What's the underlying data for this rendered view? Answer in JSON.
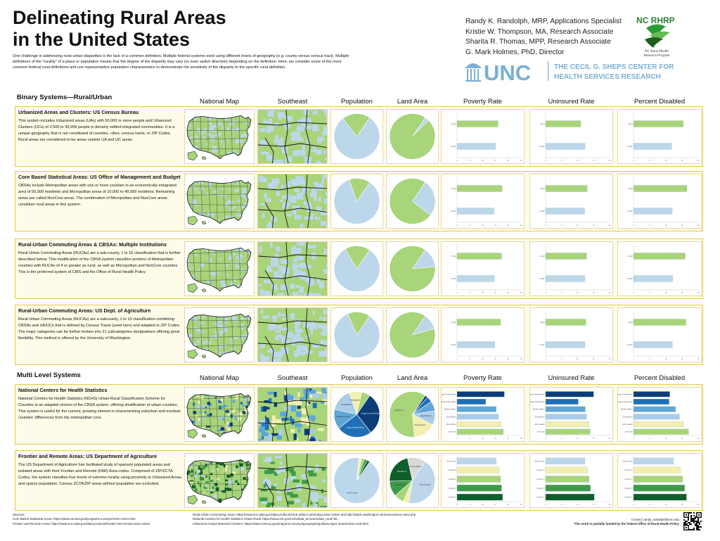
{
  "title_line1": "Delineating Rural Areas",
  "title_line2": "in the United States",
  "intro": "One challenge in addressing rural-urban disparities is the lack of a common definition.  Multiple federal systems exist using different levels of geography (e.g. county versus census tract).  Multiple definitions of the “rurality” of a place or population means that the degree of the disparity may vary (or even switch direction) depending on the definition.  Here, we consider  some of the more common federal rural definitions and use representative population characteristics to demonstrate the sensitivity of the disparity to the specific rural definition.",
  "authors": [
    "Randy K. Randolph, MRP, Applications Specialist",
    "Kristie W. Thompson, MA, Research Associate",
    "Sharita R. Thomas, MPP, Research Associate",
    "G. Mark Holmes, PhD, Director"
  ],
  "logos": {
    "nc_rhrp": "NC RHRP",
    "nc_rhrp_sub1": "NC Rural Health",
    "nc_rhrp_sub2": "Research Program",
    "unc": "UNC",
    "sheps1": "THE CECIL G. SHEPS CENTER FOR",
    "sheps2": "HEALTH SERVICES RESEARCH"
  },
  "sections": {
    "binary": "Binary Systems—Rural/Urban",
    "multi": "Multi Level Systems"
  },
  "columns": [
    "National Map",
    "Southeast",
    "Population",
    "Land Area",
    "Poverty Rate",
    "Uninsured Rate",
    "Percent Disabled"
  ],
  "rows": [
    {
      "title": "Urbanized Areas and Clusters: US Census Bureau",
      "text": "This system includes Urbanized areas (UAs) with 50,000 or more people and Urbanized Clusters (UCs) of 2,500 to 49,999 people in densely settled integrated communities. It is a unique geography that is not constituted of counties, cities, census tracts, or ZIP Codes. Rural areas are considered to be areas outside UA and UC areas."
    },
    {
      "title": "Core Based Statistical Areas: US Office of Management and Budget",
      "text": "CBSAs include Metropolitan areas with one or more counties in an economically integrated area of 50,000 residents and Micropolitan areas of 10,000 to 49,999 residents.  Remaining areas are called NonCore areas. The combination of Micropolitan and NonCore areas constitute rural areas in this system."
    },
    {
      "title": "Rural-Urban Commuting Areas & CBSAs: Multiple Institutions",
      "text": "Rural-Urban Commuting Areas (RUCAs) are a sub-county, 1 to 10 classification that is further described below. This modification of the CBSA system classifies portions of Metropolitan counties with RUCAs of 4 or greater as rural, as well as Micropolitan and NonCore counties. This is the preferred system of CMS and the Office of Rural Health Policy."
    },
    {
      "title": "Rural-Urban Commuting Areas: US Dept. of Agriculture",
      "text": "Rural-Urban Commuting Areas (RUCAs) are a subcounty, 1 to 10 classification combining CBSAs and UA/UCs that is defined by Census Tracts (used here) and adapted to ZIP Codes. The major categories can be further broken into 21 subcategories designations offering great flexibility. This method is offered by the University of Washington."
    },
    {
      "title": "National Centers for Health Statistics",
      "text": "National Centers for Health Statistics (NCHS) Urban-Rural Classification Scheme for Counties is an adapted version of the CBSA system, offering stratification of urban counties. This system is useful for the current, growing interest in characterizing suburban and exurban counties' differences from the metropolitan core."
    },
    {
      "title": "Frontier and Remote Areas: US Department of Agriculture",
      "text": "The US Department of Agriculture has facilitated study of sparsely populated areas and isolated areas with their Frontier and Remote (FAR) Area codes. Comprised of ZIP/ZCTA Codes, the system classifies four levels of extreme rurality using proximity to Urbanized Areas and sparse population. Census ZCTA/ZIP areas without population are excluded."
    }
  ],
  "chart_data": [
    {
      "type": "pie",
      "name": "Population — Urbanized Areas",
      "values": [
        80,
        20
      ],
      "colors": [
        "#bcd7ea",
        "#a8d47a"
      ]
    },
    {
      "type": "pie",
      "name": "Land Area — Urbanized Areas",
      "values": [
        3,
        97
      ],
      "colors": [
        "#bcd7ea",
        "#a8d47a"
      ]
    },
    {
      "type": "bar",
      "name": "Poverty Rate — Urbanized Areas",
      "categories": [
        "Rural",
        "Urban"
      ],
      "values": [
        16.0,
        15.0
      ],
      "xlim": [
        0,
        25
      ],
      "colors": [
        "#a8d47a",
        "#bcd7ea"
      ]
    },
    {
      "type": "bar",
      "name": "Uninsured Rate — Urbanized Areas",
      "categories": [
        "Rural",
        "Urban"
      ],
      "values": [
        11.0,
        12.4
      ],
      "xlim": [
        0,
        20
      ],
      "colors": [
        "#a8d47a",
        "#bcd7ea"
      ]
    },
    {
      "type": "bar",
      "name": "Percent Disabled — Urbanized Areas",
      "categories": [
        "Rural",
        "Urban"
      ],
      "values": [
        15.4,
        11.8
      ],
      "xlim": [
        0,
        20
      ],
      "colors": [
        "#a8d47a",
        "#bcd7ea"
      ]
    },
    {
      "type": "pie",
      "name": "Population — CBSA",
      "values": [
        85,
        15
      ],
      "colors": [
        "#bcd7ea",
        "#a8d47a"
      ]
    },
    {
      "type": "pie",
      "name": "Land Area — CBSA",
      "values": [
        26,
        74
      ],
      "colors": [
        "#bcd7ea",
        "#a8d47a"
      ]
    },
    {
      "type": "bar",
      "name": "Poverty Rate — CBSA",
      "categories": [
        "Rural",
        "Urban"
      ],
      "values": [
        17.6,
        14.5
      ],
      "xlim": [
        0,
        25
      ],
      "colors": [
        "#a8d47a",
        "#bcd7ea"
      ]
    },
    {
      "type": "bar",
      "name": "Uninsured Rate — CBSA",
      "categories": [
        "Rural",
        "Urban"
      ],
      "values": [
        13.0,
        12.2
      ],
      "xlim": [
        0,
        20
      ],
      "colors": [
        "#a8d47a",
        "#bcd7ea"
      ]
    },
    {
      "type": "bar",
      "name": "Percent Disabled — CBSA",
      "categories": [
        "Rural",
        "Urban"
      ],
      "values": [
        16.5,
        12.0
      ],
      "xlim": [
        0,
        20
      ],
      "colors": [
        "#a8d47a",
        "#bcd7ea"
      ]
    },
    {
      "type": "pie",
      "name": "Population — RUCA & CBSA",
      "values": [
        82,
        18
      ],
      "colors": [
        "#bcd7ea",
        "#a8d47a"
      ]
    },
    {
      "type": "pie",
      "name": "Land Area — RUCA & CBSA",
      "values": [
        14,
        86
      ],
      "colors": [
        "#bcd7ea",
        "#a8d47a"
      ]
    },
    {
      "type": "bar",
      "name": "Poverty Rate — RUCA & CBSA",
      "categories": [
        "Rural",
        "Urban"
      ],
      "values": [
        17.4,
        14.6
      ],
      "xlim": [
        0,
        25
      ],
      "colors": [
        "#a8d47a",
        "#bcd7ea"
      ]
    },
    {
      "type": "bar",
      "name": "Uninsured Rate — RUCA & CBSA",
      "categories": [
        "Rural",
        "Urban"
      ],
      "values": [
        12.8,
        12.3
      ],
      "xlim": [
        0,
        20
      ],
      "colors": [
        "#a8d47a",
        "#bcd7ea"
      ]
    },
    {
      "type": "bar",
      "name": "Percent Disabled — RUCA & CBSA",
      "categories": [
        "Rural",
        "Urban"
      ],
      "values": [
        16.0,
        12.1
      ],
      "xlim": [
        0,
        20
      ],
      "colors": [
        "#a8d47a",
        "#bcd7ea"
      ]
    },
    {
      "type": "pie",
      "name": "Population — RUCA USDA",
      "values": [
        84,
        16
      ],
      "colors": [
        "#bcd7ea",
        "#a8d47a"
      ]
    },
    {
      "type": "pie",
      "name": "Land Area — RUCA USDA",
      "values": [
        11,
        89
      ],
      "colors": [
        "#bcd7ea",
        "#a8d47a"
      ]
    },
    {
      "type": "bar",
      "name": "Poverty Rate — RUCA USDA",
      "categories": [
        "Rural",
        "Urban"
      ],
      "values": [
        17.0,
        14.8
      ],
      "xlim": [
        0,
        25
      ],
      "colors": [
        "#a8d47a",
        "#bcd7ea"
      ]
    },
    {
      "type": "bar",
      "name": "Uninsured Rate — RUCA USDA",
      "categories": [
        "Rural",
        "Urban"
      ],
      "values": [
        12.6,
        12.3
      ],
      "xlim": [
        0,
        20
      ],
      "colors": [
        "#a8d47a",
        "#bcd7ea"
      ]
    },
    {
      "type": "bar",
      "name": "Percent Disabled — RUCA USDA",
      "categories": [
        "Rural",
        "Urban"
      ],
      "values": [
        16.2,
        12.0
      ],
      "xlim": [
        0,
        20
      ],
      "colors": [
        "#a8d47a",
        "#bcd7ea"
      ]
    },
    {
      "type": "pie",
      "name": "Population — NCHS",
      "values": [
        30,
        25,
        14,
        16,
        9,
        6
      ],
      "colors": [
        "#0b3d78",
        "#1f6fb8",
        "#5ea6d8",
        "#a9cde9",
        "#f3efb0",
        "#a8d47a"
      ],
      "labels": [
        "Large Central Metro",
        "Large Fringe Metro",
        "Medium Metro",
        "Small Metro",
        "Micropolitan",
        "NonCore"
      ]
    },
    {
      "type": "pie",
      "name": "Land Area — NCHS",
      "values": [
        2,
        4,
        7,
        10,
        16,
        61
      ],
      "colors": [
        "#0b3d78",
        "#1f6fb8",
        "#5ea6d8",
        "#a9cde9",
        "#f3efb0",
        "#a8d47a"
      ],
      "labels": [
        "Large Central Metro",
        "Large Fringe Metro",
        "Medium Metro",
        "Small Metro",
        "Micropolitan",
        "NonCore"
      ]
    },
    {
      "type": "bar",
      "name": "Poverty Rate — NCHS",
      "categories": [
        "Large Central Metro",
        "Large Fringe Metro",
        "Medium Metro",
        "Small Metro",
        "Micropolitan",
        "NonCore"
      ],
      "values": [
        18.5,
        11.2,
        15.3,
        16.2,
        17.4,
        18.1
      ],
      "xlim": [
        0,
        25
      ],
      "colors": [
        "#0b3d78",
        "#1f6fb8",
        "#5ea6d8",
        "#a9cde9",
        "#f3efb0",
        "#a8d47a"
      ]
    },
    {
      "type": "bar",
      "name": "Uninsured Rate — NCHS",
      "categories": [
        "Large Central Metro",
        "Large Fringe Metro",
        "Medium Metro",
        "Small Metro",
        "Micropolitan",
        "NonCore"
      ],
      "values": [
        15.0,
        10.2,
        12.4,
        12.8,
        13.6,
        13.9
      ],
      "xlim": [
        0,
        20
      ],
      "colors": [
        "#0b3d78",
        "#1f6fb8",
        "#5ea6d8",
        "#a9cde9",
        "#f3efb0",
        "#a8d47a"
      ]
    },
    {
      "type": "bar",
      "name": "Percent Disabled — NCHS",
      "categories": [
        "Large Central Metro",
        "Large Fringe Metro",
        "Medium Metro",
        "Small Metro",
        "Micropolitan",
        "NonCore"
      ],
      "values": [
        11.2,
        11.0,
        13.0,
        14.2,
        15.6,
        17.0
      ],
      "xlim": [
        0,
        20
      ],
      "colors": [
        "#0b3d78",
        "#1f6fb8",
        "#5ea6d8",
        "#a9cde9",
        "#f3efb0",
        "#a8d47a"
      ]
    },
    {
      "type": "pie",
      "name": "Population — FAR",
      "values": [
        92,
        2,
        2,
        2,
        2
      ],
      "colors": [
        "#bcd7ea",
        "#f3efb0",
        "#a8d47a",
        "#3e9a48",
        "#0f5f2a"
      ],
      "labels": [
        "Not Frontier",
        "Frontier 1",
        "Frontier 2",
        "Frontier 3",
        "Frontier 4"
      ]
    },
    {
      "type": "pie",
      "name": "Land Area — FAR",
      "values": [
        43,
        4,
        7,
        11,
        22,
        13
      ],
      "colors": [
        "#bcd7ea",
        "#f3efb0",
        "#a8d47a",
        "#3e9a48",
        "#0f5f2a",
        "#d9d9d9"
      ],
      "labels": [
        "Not Frontier",
        "Frontier 1",
        "Frontier 2",
        "Frontier 3",
        "Frontier 4",
        "No Population"
      ]
    },
    {
      "type": "bar",
      "name": "Poverty Rate — FAR",
      "categories": [
        "Not Frontier",
        "Frontier 1",
        "Frontier 2",
        "Frontier 3",
        "Frontier 4"
      ],
      "values": [
        15.3,
        16.5,
        17.0,
        17.4,
        17.8
      ],
      "xlim": [
        0,
        25
      ],
      "colors": [
        "#bcd7ea",
        "#f3efb0",
        "#a8d47a",
        "#3e9a48",
        "#0f5f2a"
      ]
    },
    {
      "type": "bar",
      "name": "Uninsured Rate — FAR",
      "categories": [
        "Not Frontier",
        "Frontier 1",
        "Frontier 2",
        "Frontier 3",
        "Frontier 4"
      ],
      "values": [
        12.3,
        13.2,
        13.6,
        14.0,
        15.2
      ],
      "xlim": [
        0,
        20
      ],
      "colors": [
        "#bcd7ea",
        "#f3efb0",
        "#a8d47a",
        "#3e9a48",
        "#0f5f2a"
      ]
    },
    {
      "type": "bar",
      "name": "Percent Disabled — FAR",
      "categories": [
        "Not Frontier",
        "Frontier 1",
        "Frontier 2",
        "Frontier 3",
        "Frontier 4"
      ],
      "values": [
        12.4,
        14.6,
        15.2,
        15.8,
        16.4
      ],
      "xlim": [
        0,
        20
      ],
      "colors": [
        "#bcd7ea",
        "#f3efb0",
        "#a8d47a",
        "#3e9a48",
        "#0f5f2a"
      ]
    }
  ],
  "footer": {
    "sources_label": "Sources:",
    "cbsa": "Core Based Statistical Areas: https://www.census.gov/programs-surveys/metro-micro.html",
    "far": "Frontier and Remote Areas: https://www.ers.usda.gov/data-products/frontier-and-remote-area-codes/",
    "ruca": "Rural Urban Commuting Areas: https://www.ers.usda.gov/data-products/rural-urban-commuting-area-codes/ and http://depts.washington.edu/uwruca/ruca-uses.php",
    "nchs": "National Centers for Health Statistics Urban-Rural: https://www.cdc.gov/nchs/data_access/urban_rural.htm",
    "ua": "Urbanized Areas/Urbanized Clusters: https://www.census.gov/programs-surveys/geography/guidance/geo-areas/urban-rural.html",
    "contact": "Contact:  randy_randolph@unc.edu",
    "funding": "This work is partially funded by the federal Office of Rural Health Policy"
  },
  "colors": {
    "urban": "#bcd7ea",
    "rural": "#a8d47a",
    "border": "#e6c84a",
    "row_bg": "#fefbe9",
    "unc_blue": "#7bafd4"
  }
}
